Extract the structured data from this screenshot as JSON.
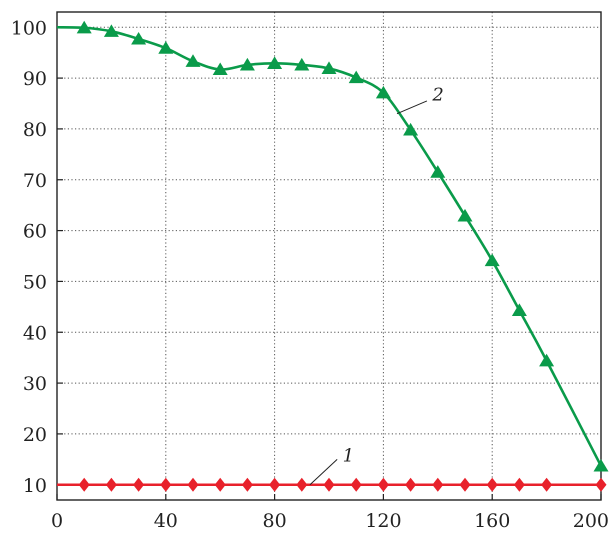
{
  "chart_data": {
    "type": "line",
    "title": "",
    "xlabel": "",
    "ylabel": "",
    "xlim": [
      0,
      200
    ],
    "ylim": [
      7,
      103
    ],
    "x_ticks": [
      0,
      40,
      80,
      120,
      160,
      200
    ],
    "y_ticks": [
      10,
      20,
      30,
      40,
      50,
      60,
      70,
      80,
      90,
      100
    ],
    "grid": true,
    "series": [
      {
        "label": "1",
        "color": "#e8212b",
        "marker": "diamond",
        "x": [
          0,
          10,
          20,
          30,
          40,
          50,
          60,
          70,
          80,
          90,
          100,
          110,
          120,
          130,
          140,
          150,
          160,
          170,
          180,
          200
        ],
        "y": [
          10,
          10,
          10,
          10,
          10,
          10,
          10,
          10,
          10,
          10,
          10,
          10,
          10,
          10,
          10,
          10,
          10,
          10,
          10,
          10
        ],
        "marker_x": [
          10,
          20,
          30,
          40,
          50,
          60,
          70,
          80,
          90,
          100,
          110,
          120,
          130,
          140,
          150,
          160,
          170,
          180,
          200
        ]
      },
      {
        "label": "2",
        "color": "#0a9b4a",
        "marker": "triangle",
        "x": [
          0,
          10,
          20,
          30,
          40,
          50,
          60,
          70,
          80,
          90,
          100,
          110,
          120,
          130,
          140,
          150,
          160,
          170,
          180,
          200
        ],
        "y": [
          100,
          99.9,
          99.2,
          97.7,
          95.9,
          93.3,
          91.7,
          92.6,
          92.9,
          92.6,
          91.9,
          90.1,
          87.1,
          79.8,
          71.5,
          62.9,
          54.1,
          44.3,
          34.4,
          13.7
        ],
        "marker_x": [
          10,
          20,
          30,
          40,
          50,
          60,
          70,
          80,
          90,
          100,
          110,
          120,
          130,
          140,
          150,
          160,
          170,
          180,
          200
        ]
      }
    ],
    "annotations": [
      {
        "text": "1",
        "series": "1",
        "leader_from": [
          93,
          10
        ],
        "leader_to": [
          103,
          15
        ],
        "text_at": [
          105,
          15
        ]
      },
      {
        "text": "2",
        "series": "2",
        "leader_from": [
          125,
          83
        ],
        "leader_to": [
          136,
          85.5
        ],
        "text_at": [
          138,
          86
        ]
      }
    ]
  }
}
